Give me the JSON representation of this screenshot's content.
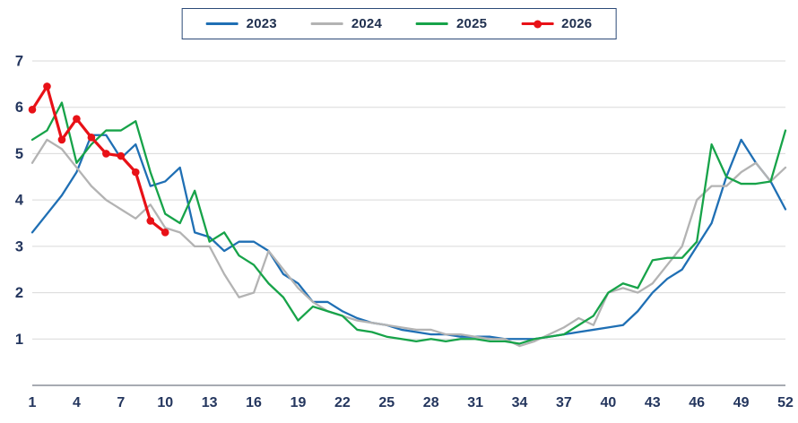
{
  "chart_data": {
    "type": "line",
    "title": "",
    "xlabel": "",
    "ylabel": "",
    "x_range": [
      1,
      52
    ],
    "ylim": [
      0,
      7
    ],
    "x_ticks": [
      1,
      4,
      7,
      10,
      13,
      16,
      19,
      22,
      25,
      28,
      31,
      34,
      37,
      40,
      43,
      46,
      49,
      52
    ],
    "y_ticks": [
      1,
      2,
      3,
      4,
      5,
      6,
      7
    ],
    "grid": "horizontal",
    "legend_position": "top-center",
    "series": [
      {
        "name": "2023",
        "color": "#1f6fb4",
        "marker": false,
        "values": [
          3.3,
          3.7,
          4.1,
          4.6,
          5.4,
          5.4,
          4.9,
          5.2,
          4.3,
          4.4,
          4.7,
          3.3,
          3.2,
          2.9,
          3.1,
          3.1,
          2.9,
          2.4,
          2.2,
          1.8,
          1.8,
          1.6,
          1.45,
          1.35,
          1.3,
          1.2,
          1.15,
          1.1,
          1.1,
          1.05,
          1.05,
          1.05,
          1.0,
          1.0,
          1.0,
          1.05,
          1.1,
          1.15,
          1.2,
          1.25,
          1.3,
          1.6,
          2.0,
          2.3,
          2.5,
          3.0,
          3.5,
          4.5,
          5.3,
          4.8,
          4.4,
          3.8
        ]
      },
      {
        "name": "2024",
        "color": "#b3b3b3",
        "marker": false,
        "values": [
          4.8,
          5.3,
          5.1,
          4.7,
          4.3,
          4.0,
          3.8,
          3.6,
          3.9,
          3.4,
          3.3,
          3.0,
          3.0,
          2.4,
          1.9,
          2.0,
          2.9,
          2.5,
          2.1,
          1.8,
          1.6,
          1.5,
          1.4,
          1.35,
          1.3,
          1.25,
          1.2,
          1.2,
          1.1,
          1.1,
          1.05,
          1.0,
          1.0,
          0.85,
          0.95,
          1.1,
          1.25,
          1.45,
          1.3,
          2.0,
          2.1,
          2.0,
          2.2,
          2.6,
          3.0,
          4.0,
          4.3,
          4.3,
          4.6,
          4.8,
          4.4,
          4.7
        ]
      },
      {
        "name": "2025",
        "color": "#17a349",
        "marker": false,
        "values": [
          5.3,
          5.5,
          6.1,
          4.8,
          5.2,
          5.5,
          5.5,
          5.7,
          4.6,
          3.7,
          3.5,
          4.2,
          3.1,
          3.3,
          2.8,
          2.6,
          2.2,
          1.9,
          1.4,
          1.7,
          1.6,
          1.5,
          1.2,
          1.15,
          1.05,
          1.0,
          0.95,
          1.0,
          0.95,
          1.0,
          1.0,
          0.95,
          0.95,
          0.9,
          1.0,
          1.05,
          1.1,
          1.3,
          1.5,
          2.0,
          2.2,
          2.1,
          2.7,
          2.75,
          2.75,
          3.1,
          5.2,
          4.5,
          4.35,
          4.35,
          4.4,
          5.5
        ]
      },
      {
        "name": "2026",
        "color": "#e81117",
        "marker": true,
        "values": [
          5.95,
          6.45,
          5.3,
          5.75,
          5.35,
          5.0,
          4.95,
          4.6,
          3.55,
          3.3
        ]
      }
    ]
  },
  "colors": {
    "axis_text": "#24365e",
    "gridline": "#d9d9d9",
    "axis_line": "#8a8f98",
    "legend_border": "#2c4a78"
  }
}
